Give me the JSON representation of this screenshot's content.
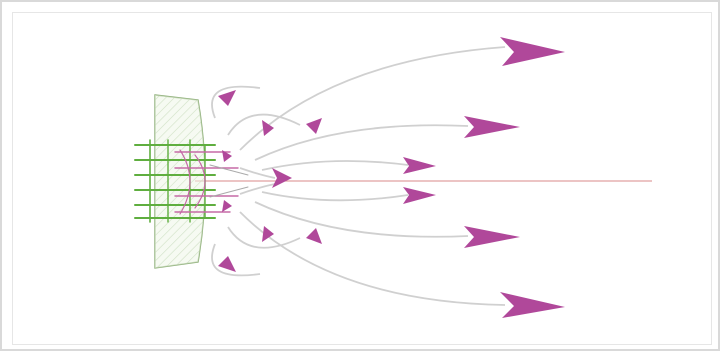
{
  "diagram": {
    "colors": {
      "flow_line": "#d0d0d0",
      "arrow_head": "#b0489a",
      "axis_line": "#e0a0a0",
      "hatched_body_fill": "#eef5e8",
      "hatched_body_stroke": "#8fb07a",
      "hatch": "#a9c79a",
      "nozzle_green": "#5fae3f",
      "nozzle_pink": "#c56aa6",
      "border": "#d9d9d9"
    },
    "icons": [
      "arrow-head-icon"
    ],
    "description_of_marks": "no visible text"
  }
}
